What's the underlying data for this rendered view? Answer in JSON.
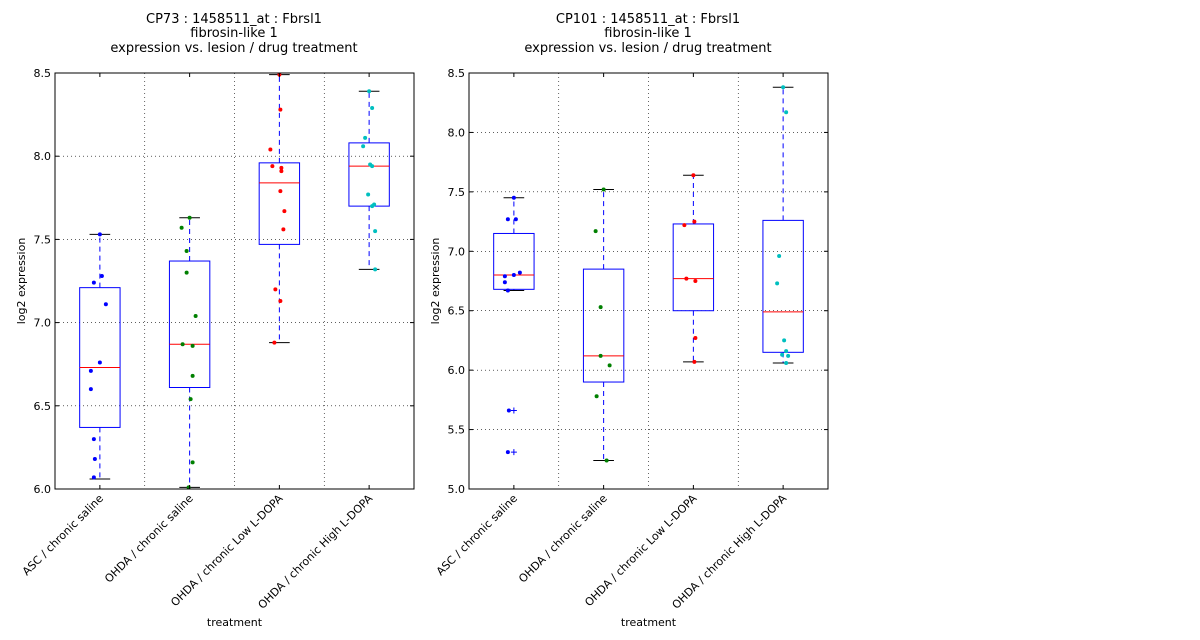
{
  "chart_data": [
    {
      "type": "box",
      "title": [
        "CP73 : 1458511_at : Fbrsl1",
        "fibrosin-like 1",
        "expression vs. lesion / drug treatment"
      ],
      "xlabel": "treatment",
      "ylabel": "log2 expression",
      "ylim": [
        6.0,
        8.5
      ],
      "yticks": [
        "6.0",
        "6.5",
        "7.0",
        "7.5",
        "8.0",
        "8.5"
      ],
      "grid": true,
      "categories": [
        "ASC / chronic saline",
        "OHDA / chronic saline",
        "OHDA / chronic Low L-DOPA",
        "OHDA / chronic High L-DOPA"
      ],
      "point_colors": [
        "#0000ff",
        "#008000",
        "#ff0000",
        "#00bfbf"
      ],
      "box_color": "#0000ff",
      "median_color": "#ff0000",
      "boxes": [
        {
          "whisker_low": 6.06,
          "q1": 6.37,
          "median": 6.73,
          "q3": 7.21,
          "whisker_high": 7.53
        },
        {
          "whisker_low": 6.01,
          "q1": 6.61,
          "median": 6.87,
          "q3": 7.37,
          "whisker_high": 7.63
        },
        {
          "whisker_low": 6.88,
          "q1": 7.47,
          "median": 7.84,
          "q3": 7.96,
          "whisker_high": 8.49
        },
        {
          "whisker_low": 7.32,
          "q1": 7.7,
          "median": 7.94,
          "q3": 8.08,
          "whisker_high": 8.39
        }
      ],
      "points": [
        [
          7.53,
          7.28,
          7.24,
          7.11,
          6.76,
          6.71,
          6.6,
          6.3,
          6.18,
          6.07
        ],
        [
          7.63,
          7.57,
          7.43,
          7.3,
          7.04,
          6.87,
          6.86,
          6.68,
          6.54,
          6.16,
          6.01
        ],
        [
          8.49,
          8.28,
          8.04,
          7.94,
          7.93,
          7.91,
          7.79,
          7.67,
          7.56,
          7.2,
          7.13,
          6.88
        ],
        [
          8.39,
          8.29,
          8.11,
          8.06,
          7.95,
          7.94,
          7.77,
          7.71,
          7.7,
          7.55,
          7.32
        ]
      ],
      "outliers": [
        [],
        [],
        [],
        []
      ]
    },
    {
      "type": "box",
      "title": [
        "CP101 : 1458511_at : Fbrsl1",
        "fibrosin-like 1",
        "expression vs. lesion / drug treatment"
      ],
      "xlabel": "treatment",
      "ylabel": "log2 expression",
      "ylim": [
        5.0,
        8.5
      ],
      "yticks": [
        "5.0",
        "5.5",
        "6.0",
        "6.5",
        "7.0",
        "7.5",
        "8.0",
        "8.5"
      ],
      "grid": true,
      "categories": [
        "ASC / chronic saline",
        "OHDA / chronic saline",
        "OHDA / chronic Low L-DOPA",
        "OHDA / chronic High L-DOPA"
      ],
      "point_colors": [
        "#0000ff",
        "#008000",
        "#ff0000",
        "#00bfbf"
      ],
      "box_color": "#0000ff",
      "median_color": "#ff0000",
      "boxes": [
        {
          "whisker_low": 6.67,
          "q1": 6.68,
          "median": 6.8,
          "q3": 7.15,
          "whisker_high": 7.45
        },
        {
          "whisker_low": 5.24,
          "q1": 5.9,
          "median": 6.12,
          "q3": 6.85,
          "whisker_high": 7.52
        },
        {
          "whisker_low": 6.07,
          "q1": 6.5,
          "median": 6.77,
          "q3": 7.23,
          "whisker_high": 7.64
        },
        {
          "whisker_low": 6.06,
          "q1": 6.15,
          "median": 6.49,
          "q3": 7.26,
          "whisker_high": 8.38
        }
      ],
      "points": [
        [
          7.45,
          7.27,
          7.27,
          6.82,
          6.8,
          6.79,
          6.74,
          6.67,
          5.66,
          5.31
        ],
        [
          7.52,
          7.17,
          6.53,
          6.12,
          6.04,
          5.78,
          5.24
        ],
        [
          7.64,
          7.25,
          7.22,
          6.77,
          6.75,
          6.27,
          6.07
        ],
        [
          8.38,
          8.17,
          6.96,
          6.73,
          6.25,
          6.16,
          6.13,
          6.12,
          6.06
        ]
      ],
      "outliers": [
        [
          5.66,
          5.31
        ],
        [],
        [],
        []
      ]
    }
  ]
}
